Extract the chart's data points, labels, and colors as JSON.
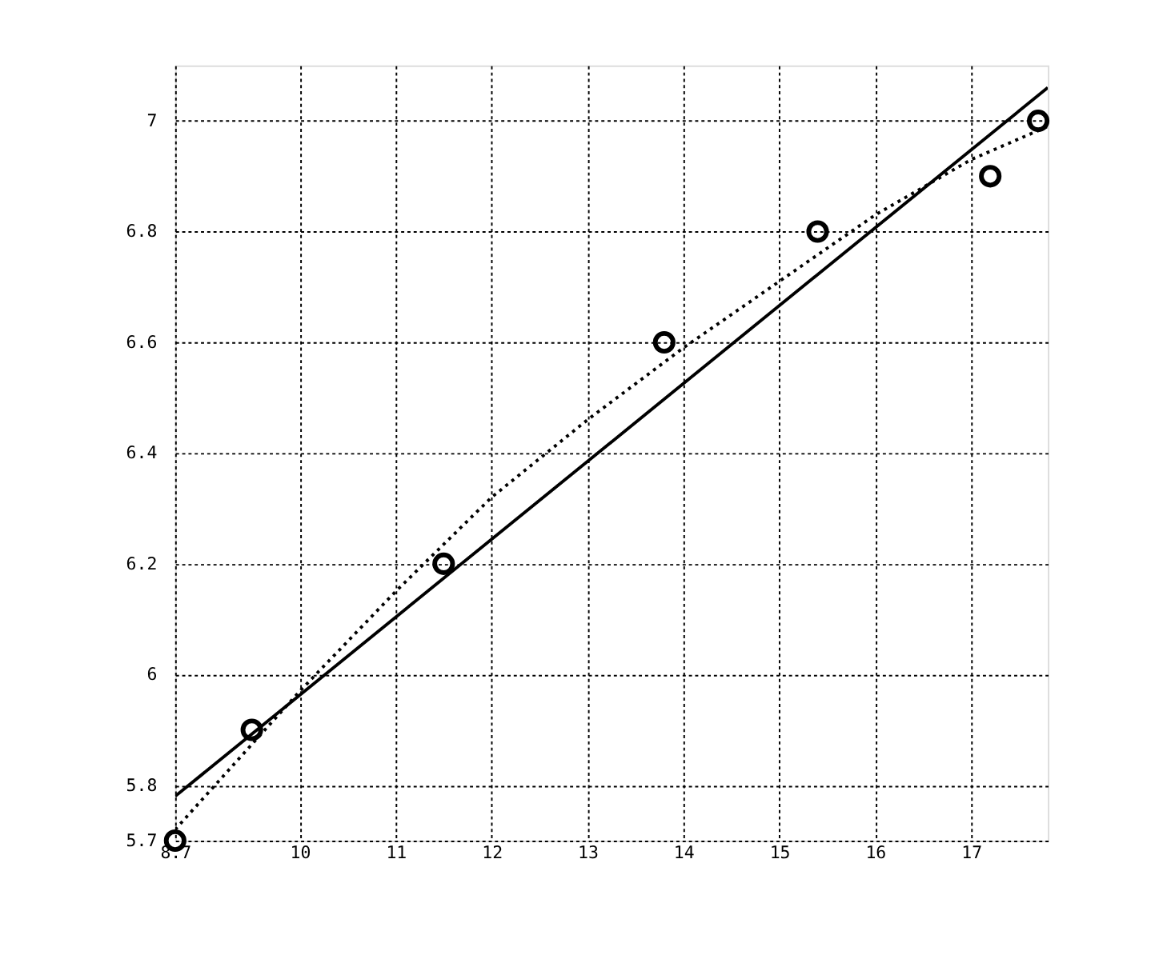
{
  "chart_data": {
    "type": "scatter",
    "xlim": [
      8.7,
      17.8
    ],
    "ylim": [
      5.7,
      7.1
    ],
    "xticks": [
      8.7,
      10,
      11,
      12,
      13,
      14,
      15,
      16,
      17
    ],
    "yticks": [
      5.7,
      5.8,
      6,
      6.2,
      6.4,
      6.6,
      6.8,
      7
    ],
    "grid": true,
    "series": [
      {
        "marker": "circle",
        "color": "#000000",
        "x": [
          8.7,
          9.5,
          11.5,
          13.8,
          15.4,
          17.2,
          17.7
        ],
        "values": [
          5.7,
          5.9,
          6.2,
          6.6,
          6.8,
          6.9,
          7.0
        ]
      },
      {
        "type": "line",
        "line_style": "solid",
        "marker": "none",
        "color": "#000000",
        "x": [
          8.7,
          17.8
        ],
        "values": [
          5.78,
          7.06
        ]
      },
      {
        "type": "line",
        "line_style": "dotted",
        "marker": "none",
        "color": "#000000",
        "x": [
          8.7,
          10,
          11,
          12,
          13,
          14,
          15,
          16,
          17,
          17.8
        ],
        "values": [
          5.72,
          5.97,
          6.15,
          6.32,
          6.46,
          6.59,
          6.71,
          6.83,
          6.93,
          6.99
        ]
      }
    ]
  }
}
